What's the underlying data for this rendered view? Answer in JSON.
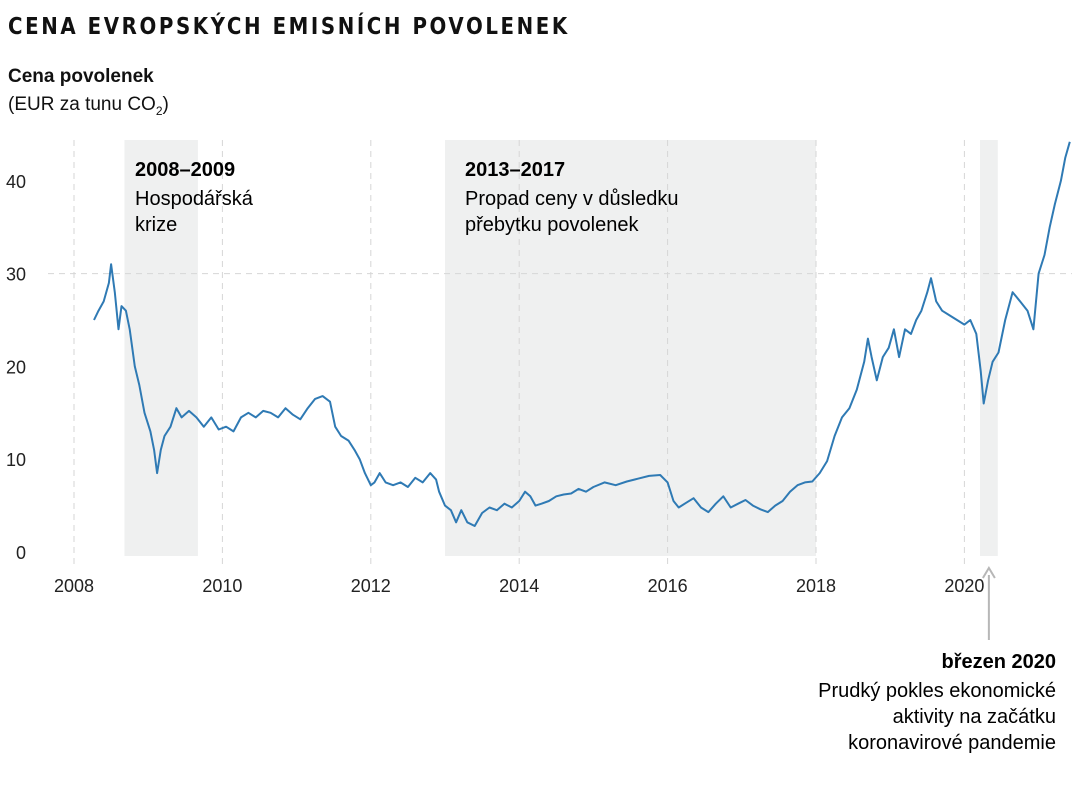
{
  "title": "CENA EVROPSKÝCH EMISNÍCH POVOLENEK",
  "y_title": "Cena povolenek",
  "y_unit": "(EUR za tunu CO",
  "y_unit_sub": "2",
  "y_unit_end": ")",
  "colors": {
    "line": "#2f7ab4",
    "band": "#eff0f0",
    "grid": "#d6d6d6",
    "arrow": "#b7b7b7"
  },
  "chart_data": {
    "type": "line",
    "x_range": [
      2008,
      2021.6
    ],
    "y_range": [
      0,
      45
    ],
    "x_ticks": [
      "2008",
      "2010",
      "2012",
      "2014",
      "2016",
      "2018",
      "2020"
    ],
    "y_ticks": [
      "0",
      "10",
      "20",
      "30",
      "40"
    ],
    "grid": "dashed",
    "series": [
      {
        "values": [
          [
            2008.27,
            25
          ],
          [
            2008.33,
            26
          ],
          [
            2008.4,
            27
          ],
          [
            2008.47,
            29
          ],
          [
            2008.5,
            31
          ],
          [
            2008.55,
            28
          ],
          [
            2008.6,
            24
          ],
          [
            2008.64,
            26.5
          ],
          [
            2008.7,
            26
          ],
          [
            2008.75,
            24
          ],
          [
            2008.82,
            20
          ],
          [
            2008.88,
            18
          ],
          [
            2008.95,
            15
          ],
          [
            2009.03,
            13
          ],
          [
            2009.08,
            11
          ],
          [
            2009.12,
            8.5
          ],
          [
            2009.17,
            11
          ],
          [
            2009.22,
            12.5
          ],
          [
            2009.3,
            13.5
          ],
          [
            2009.38,
            15.5
          ],
          [
            2009.45,
            14.5
          ],
          [
            2009.55,
            15.2
          ],
          [
            2009.65,
            14.5
          ],
          [
            2009.75,
            13.5
          ],
          [
            2009.85,
            14.5
          ],
          [
            2009.95,
            13.2
          ],
          [
            2010.05,
            13.5
          ],
          [
            2010.15,
            13
          ],
          [
            2010.25,
            14.5
          ],
          [
            2010.35,
            15
          ],
          [
            2010.45,
            14.5
          ],
          [
            2010.55,
            15.2
          ],
          [
            2010.65,
            15
          ],
          [
            2010.75,
            14.5
          ],
          [
            2010.85,
            15.5
          ],
          [
            2010.95,
            14.8
          ],
          [
            2011.05,
            14.3
          ],
          [
            2011.15,
            15.5
          ],
          [
            2011.25,
            16.5
          ],
          [
            2011.35,
            16.8
          ],
          [
            2011.45,
            16.2
          ],
          [
            2011.52,
            13.5
          ],
          [
            2011.6,
            12.5
          ],
          [
            2011.7,
            12
          ],
          [
            2011.78,
            11
          ],
          [
            2011.85,
            10
          ],
          [
            2011.92,
            8.5
          ],
          [
            2012.0,
            7.2
          ],
          [
            2012.05,
            7.5
          ],
          [
            2012.12,
            8.5
          ],
          [
            2012.2,
            7.5
          ],
          [
            2012.3,
            7.2
          ],
          [
            2012.4,
            7.5
          ],
          [
            2012.5,
            7
          ],
          [
            2012.6,
            8
          ],
          [
            2012.7,
            7.5
          ],
          [
            2012.8,
            8.5
          ],
          [
            2012.88,
            7.8
          ],
          [
            2012.92,
            6.5
          ],
          [
            2013.0,
            5
          ],
          [
            2013.08,
            4.5
          ],
          [
            2013.15,
            3.2
          ],
          [
            2013.22,
            4.5
          ],
          [
            2013.3,
            3.2
          ],
          [
            2013.4,
            2.8
          ],
          [
            2013.5,
            4.2
          ],
          [
            2013.6,
            4.8
          ],
          [
            2013.7,
            4.5
          ],
          [
            2013.8,
            5.2
          ],
          [
            2013.9,
            4.8
          ],
          [
            2014.0,
            5.5
          ],
          [
            2014.08,
            6.5
          ],
          [
            2014.15,
            6
          ],
          [
            2014.22,
            5
          ],
          [
            2014.3,
            5.2
          ],
          [
            2014.4,
            5.5
          ],
          [
            2014.5,
            6
          ],
          [
            2014.6,
            6.2
          ],
          [
            2014.7,
            6.3
          ],
          [
            2014.8,
            6.8
          ],
          [
            2014.9,
            6.5
          ],
          [
            2015.0,
            7
          ],
          [
            2015.15,
            7.5
          ],
          [
            2015.3,
            7.2
          ],
          [
            2015.45,
            7.6
          ],
          [
            2015.6,
            7.9
          ],
          [
            2015.75,
            8.2
          ],
          [
            2015.9,
            8.3
          ],
          [
            2016.0,
            7.5
          ],
          [
            2016.08,
            5.5
          ],
          [
            2016.15,
            4.8
          ],
          [
            2016.25,
            5.3
          ],
          [
            2016.35,
            5.8
          ],
          [
            2016.45,
            4.8
          ],
          [
            2016.55,
            4.3
          ],
          [
            2016.65,
            5.2
          ],
          [
            2016.75,
            6
          ],
          [
            2016.85,
            4.8
          ],
          [
            2016.95,
            5.2
          ],
          [
            2017.05,
            5.6
          ],
          [
            2017.15,
            5
          ],
          [
            2017.25,
            4.6
          ],
          [
            2017.35,
            4.3
          ],
          [
            2017.45,
            5
          ],
          [
            2017.55,
            5.5
          ],
          [
            2017.65,
            6.5
          ],
          [
            2017.75,
            7.2
          ],
          [
            2017.85,
            7.5
          ],
          [
            2017.95,
            7.6
          ],
          [
            2018.05,
            8.5
          ],
          [
            2018.15,
            9.8
          ],
          [
            2018.25,
            12.5
          ],
          [
            2018.35,
            14.5
          ],
          [
            2018.45,
            15.5
          ],
          [
            2018.55,
            17.5
          ],
          [
            2018.65,
            20.5
          ],
          [
            2018.7,
            23
          ],
          [
            2018.75,
            21
          ],
          [
            2018.82,
            18.5
          ],
          [
            2018.9,
            21
          ],
          [
            2018.98,
            22
          ],
          [
            2019.05,
            24
          ],
          [
            2019.12,
            21
          ],
          [
            2019.2,
            24
          ],
          [
            2019.28,
            23.5
          ],
          [
            2019.35,
            25
          ],
          [
            2019.42,
            26
          ],
          [
            2019.5,
            28
          ],
          [
            2019.55,
            29.5
          ],
          [
            2019.62,
            27
          ],
          [
            2019.7,
            26
          ],
          [
            2019.8,
            25.5
          ],
          [
            2019.9,
            25
          ],
          [
            2020.0,
            24.5
          ],
          [
            2020.08,
            25
          ],
          [
            2020.16,
            23.5
          ],
          [
            2020.22,
            19.5
          ],
          [
            2020.26,
            16
          ],
          [
            2020.32,
            18.5
          ],
          [
            2020.38,
            20.5
          ],
          [
            2020.46,
            21.5
          ],
          [
            2020.55,
            25
          ],
          [
            2020.65,
            28
          ],
          [
            2020.75,
            27
          ],
          [
            2020.85,
            26
          ],
          [
            2020.93,
            24
          ],
          [
            2021.0,
            30
          ],
          [
            2021.08,
            32
          ],
          [
            2021.15,
            35
          ],
          [
            2021.22,
            37.5
          ],
          [
            2021.3,
            40
          ],
          [
            2021.36,
            42.5
          ],
          [
            2021.42,
            44.2
          ]
        ]
      }
    ],
    "bands": [
      {
        "from": 2008.68,
        "to": 2009.67,
        "head": "2008–2009",
        "lines": [
          "Hospodářská",
          "krize"
        ]
      },
      {
        "from": 2013.0,
        "to": 2018.0,
        "head": "2013–2017",
        "lines": [
          "Propad ceny v důsledku",
          "přebytku povolenek"
        ]
      },
      {
        "from": 2020.21,
        "to": 2020.45,
        "head": "březen 2020",
        "lines": [
          "Prudký pokles ekonomické",
          "aktivity na začátku",
          "koronavirové pandemie"
        ]
      }
    ]
  }
}
